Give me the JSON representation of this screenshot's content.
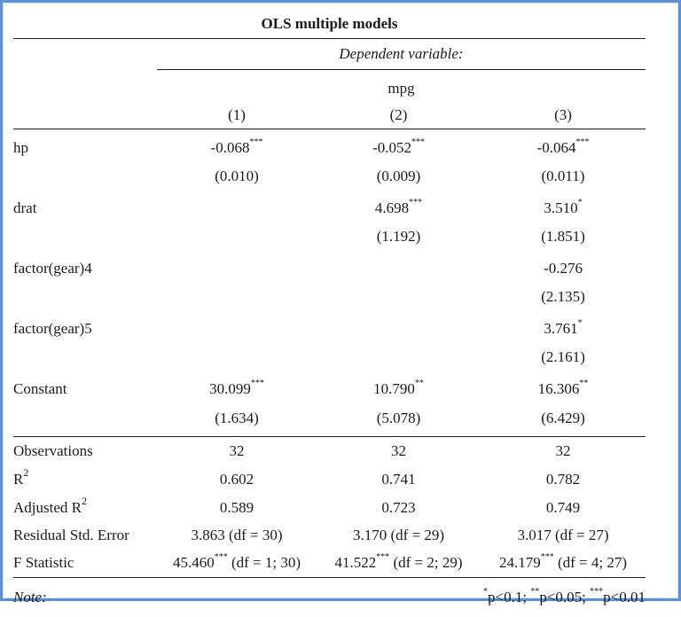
{
  "table": {
    "title": "OLS multiple models",
    "dependent_label": "Dependent variable:",
    "dependent_name": "mpg",
    "model_numbers": [
      "(1)",
      "(2)",
      "(3)"
    ],
    "coefficients": [
      {
        "name": "hp",
        "est": [
          "-0.068",
          "-0.052",
          "-0.064"
        ],
        "stars": [
          "***",
          "***",
          "***"
        ],
        "se": [
          "(0.010)",
          "(0.009)",
          "(0.011)"
        ]
      },
      {
        "name": "drat",
        "est": [
          "",
          "4.698",
          "3.510"
        ],
        "stars": [
          "",
          "***",
          "*"
        ],
        "se": [
          "",
          "(1.192)",
          "(1.851)"
        ]
      },
      {
        "name": "factor(gear)4",
        "est": [
          "",
          "",
          "-0.276"
        ],
        "stars": [
          "",
          "",
          ""
        ],
        "se": [
          "",
          "",
          "(2.135)"
        ]
      },
      {
        "name": "factor(gear)5",
        "est": [
          "",
          "",
          "3.761"
        ],
        "stars": [
          "",
          "",
          "*"
        ],
        "se": [
          "",
          "",
          "(2.161)"
        ]
      },
      {
        "name": "Constant",
        "est": [
          "30.099",
          "10.790",
          "16.306"
        ],
        "stars": [
          "***",
          "**",
          "**"
        ],
        "se": [
          "(1.634)",
          "(5.078)",
          "(6.429)"
        ]
      }
    ],
    "stats": {
      "observations": {
        "label": "Observations",
        "values": [
          "32",
          "32",
          "32"
        ]
      },
      "r2": {
        "label": "R",
        "sup": "2",
        "values": [
          "0.602",
          "0.741",
          "0.782"
        ]
      },
      "adj_r2": {
        "label": "Adjusted R",
        "sup": "2",
        "values": [
          "0.589",
          "0.723",
          "0.749"
        ]
      },
      "rse": {
        "label": "Residual Std. Error",
        "values": [
          "3.863 (df = 30)",
          "3.170 (df = 29)",
          "3.017 (df = 27)"
        ]
      },
      "fstat": {
        "label": "F Statistic",
        "values": [
          {
            "v": "45.460",
            "stars": "***",
            "df": " (df = 1; 30)"
          },
          {
            "v": "41.522",
            "stars": "***",
            "df": " (df = 2; 29)"
          },
          {
            "v": "24.179",
            "stars": "***",
            "df": " (df = 4; 27)"
          }
        ]
      }
    },
    "note": {
      "label": "Note:",
      "s1": "*",
      "t1": "p<0.1; ",
      "s2": "**",
      "t2": "p<0.05; ",
      "s3": "***",
      "t3": "p<0.01"
    }
  }
}
